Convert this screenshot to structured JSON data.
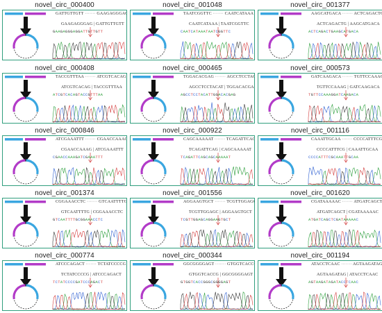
{
  "panels": [
    {
      "id": "novel_circ_000400",
      "top_left": "GATTGTTGTT",
      "top_right": "GAAGAGGGAG",
      "mid_left": "GAAGAGGGAG",
      "mid_right": "GATTGTTGTT",
      "bases": "GAAGAGGGAGGATTGTTGTT"
    },
    {
      "id": "novel_circ_001048",
      "top_left": "TAATCGGTTC",
      "top_right": "CAATCATAAA",
      "mid_left": "CAATCATAAA",
      "mid_right": "TAATCGGTTC",
      "bases": "CAATCATAAATAATCGGTTC"
    },
    {
      "id": "novel_circ_001377",
      "top_left": "AAGCATGACA",
      "top_right": "ACTCAGACTG",
      "mid_left": "ACTCAGACTG",
      "mid_right": "AAGCATGACA",
      "bases": "ACTCAGACTGAAGCATGACA"
    },
    {
      "id": "novel_circ_000408",
      "top_left": "TACCGTTTAA",
      "top_right": "ATCGTCACAG",
      "mid_left": "ATCGTCACAG",
      "mid_right": "TACCGTTTAA",
      "bases": "ATCGTCACAGTACCGTTTAA"
    },
    {
      "id": "novel_circ_000465",
      "top_left": "TGGACACGAG",
      "top_right": "AGCCTCCTACAT",
      "mid_left": "AGCCTCCTACAT",
      "mid_right": "TGGACACGAG",
      "bases": "AGCCTCCTACATTGGACACGAG"
    },
    {
      "id": "novel_circ_000573",
      "top_left": "GATCAAGACA",
      "top_right": "TGTTCCAAAG",
      "mid_left": "TGTTCCAAAG",
      "mid_right": "GATCAAGACA",
      "bases": "TGTTCCAAAGGATCAAGACA"
    },
    {
      "id": "novel_circ_000846",
      "top_left": "ATCGAAATTT",
      "top_right": "CGAACCAAAG",
      "mid_left": "CGAACCAAAG",
      "mid_right": "ATCGAAATTT",
      "bases": "CGAACCAAAGATCGAAATTT"
    },
    {
      "id": "novel_circ_000922",
      "top_left": "CAGCAAAAAT",
      "top_right": "TCAGATTCAG",
      "mid_left": "TCAGATTCAG",
      "mid_right": "CAGCAAAAAT",
      "bases": "TCAGATTCAGCAGCAAAAAT"
    },
    {
      "id": "novel_circ_001116",
      "top_left": "CAAATTGCAA",
      "top_right": "CCCCATTTCG",
      "mid_left": "CCCCATTTCG",
      "mid_right": "CAAATTGCAA",
      "bases": "CCCCATTTCGCAAATTGCAA"
    },
    {
      "id": "novel_circ_001374",
      "top_left": "CGGAAACCTC",
      "top_right": "GTCAATTTTG",
      "mid_left": "GTCAATTTTG",
      "mid_right": "CGGAAACCTC",
      "bases": "GTCAATTTTGCGGAAACCTC"
    },
    {
      "id": "novel_circ_001556",
      "top_left": "AGGAAGTGCT",
      "top_right": "TCGTTGGAGC",
      "mid_left": "TCGTTGGAGC",
      "mid_right": "AGGAAGTGCT",
      "bases": "TCGTTGGAGCAGGAAGTGCT"
    },
    {
      "id": "novel_circ_001620",
      "top_left": "CGATAAAAAC",
      "top_right": "ATGATCAGCT",
      "mid_left": "ATGATCAGCT",
      "mid_right": "CGATAAAAAC",
      "bases": "ATGATCAGCTCGATAAAAAC"
    },
    {
      "id": "novel_circ_000774",
      "top_left": "ATCCCAGACT",
      "top_right": "TCTATCCCCG",
      "mid_left": "TCTATCCCCG",
      "mid_right": "ATCCCAGACT",
      "bases": "TCTATCCCCGATCCCAGACT"
    },
    {
      "id": "novel_circ_000344",
      "top_left": "GGCGGGGAGT",
      "top_right": "GTGGTCACCG",
      "mid_left": "GTGGTCACCG",
      "mid_right": "GGCGGGGAGT",
      "bases": "GTGGTCACCGGGCGGGGAGT"
    },
    {
      "id": "novel_circ_001194",
      "top_left": "ATACCTCAAC",
      "top_right": "AGTAAGATAG",
      "mid_left": "AGTAAGATAG",
      "mid_right": "ATACCTCAAC",
      "bases": "AGTAAGATAGATACCTCAAC"
    }
  ],
  "colors": {
    "border": "#2f9e7d",
    "blue_exon": "#3aa6e0",
    "magenta_exon": "#b23bc8",
    "arrow": "#111111",
    "peak_A": "#2a9d3a",
    "peak_C": "#2d5fd1",
    "peak_G": "#333333",
    "peak_T": "#d23a3a",
    "junction_arrow": "#d23a3a"
  }
}
